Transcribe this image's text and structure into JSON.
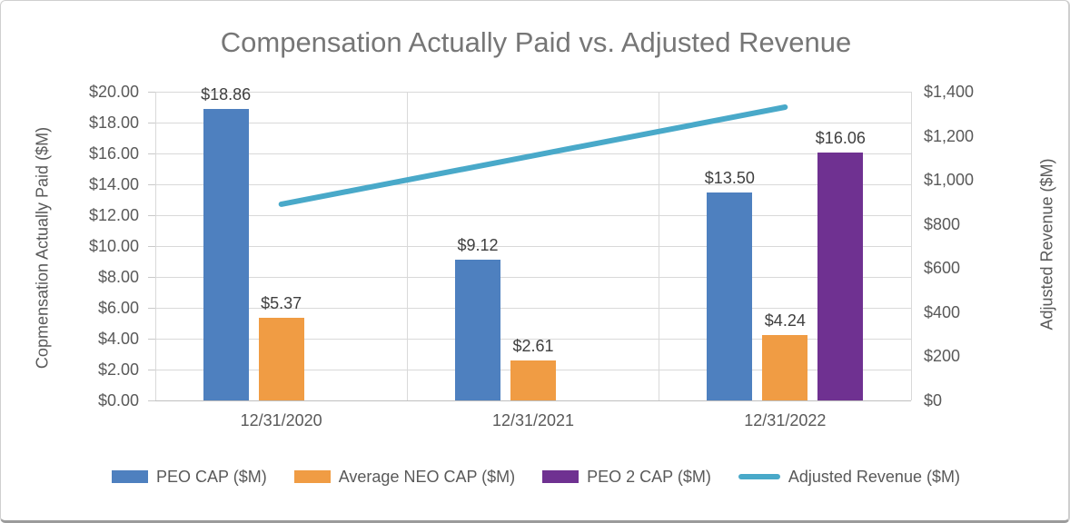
{
  "chart_data": {
    "type": "combo-bar-line",
    "title": "Compensation Actually Paid vs. Adjusted Revenue",
    "categories": [
      "12/31/2020",
      "12/31/2021",
      "12/31/2022"
    ],
    "bar_series": [
      {
        "name": "PEO CAP ($M)",
        "color": "#4e80bf",
        "values": [
          18.86,
          9.12,
          13.5
        ],
        "labels": [
          "$18.86",
          "$9.12",
          "$13.50"
        ]
      },
      {
        "name": "Average NEO CAP ($M)",
        "color": "#f09c44",
        "values": [
          5.37,
          2.61,
          4.24
        ],
        "labels": [
          "$5.37",
          "$2.61",
          "$4.24"
        ]
      },
      {
        "name": "PEO 2 CAP ($M)",
        "color": "#6f3191",
        "values": [
          null,
          null,
          16.06
        ],
        "labels": [
          null,
          null,
          "$16.06"
        ]
      }
    ],
    "line_series": {
      "name": "Adjusted Revenue ($M)",
      "color": "#49a9c9",
      "axis": "right",
      "values": [
        890,
        1110,
        1330
      ]
    },
    "left_axis": {
      "title": "Copmensation Actually Paid ($M)",
      "min": 0,
      "max": 20,
      "step": 2,
      "ticks": [
        "$0.00",
        "$2.00",
        "$4.00",
        "$6.00",
        "$8.00",
        "$10.00",
        "$12.00",
        "$14.00",
        "$16.00",
        "$18.00",
        "$20.00"
      ]
    },
    "right_axis": {
      "title": "Adjusted Revenue ($M)",
      "min": 0,
      "max": 1400,
      "step": 200,
      "ticks": [
        "$0",
        "$200",
        "$400",
        "$600",
        "$800",
        "$1,000",
        "$1,200",
        "$1,400"
      ]
    },
    "legend": {
      "position": "bottom",
      "items": [
        {
          "label": "PEO CAP ($M)",
          "color": "#4e80bf",
          "marker": "rect"
        },
        {
          "label": "Average NEO CAP ($M)",
          "color": "#f09c44",
          "marker": "rect"
        },
        {
          "label": "PEO 2 CAP ($M)",
          "color": "#6f3191",
          "marker": "rect"
        },
        {
          "label": "Adjusted Revenue ($M)",
          "color": "#49a9c9",
          "marker": "line"
        }
      ]
    },
    "grid": true
  }
}
